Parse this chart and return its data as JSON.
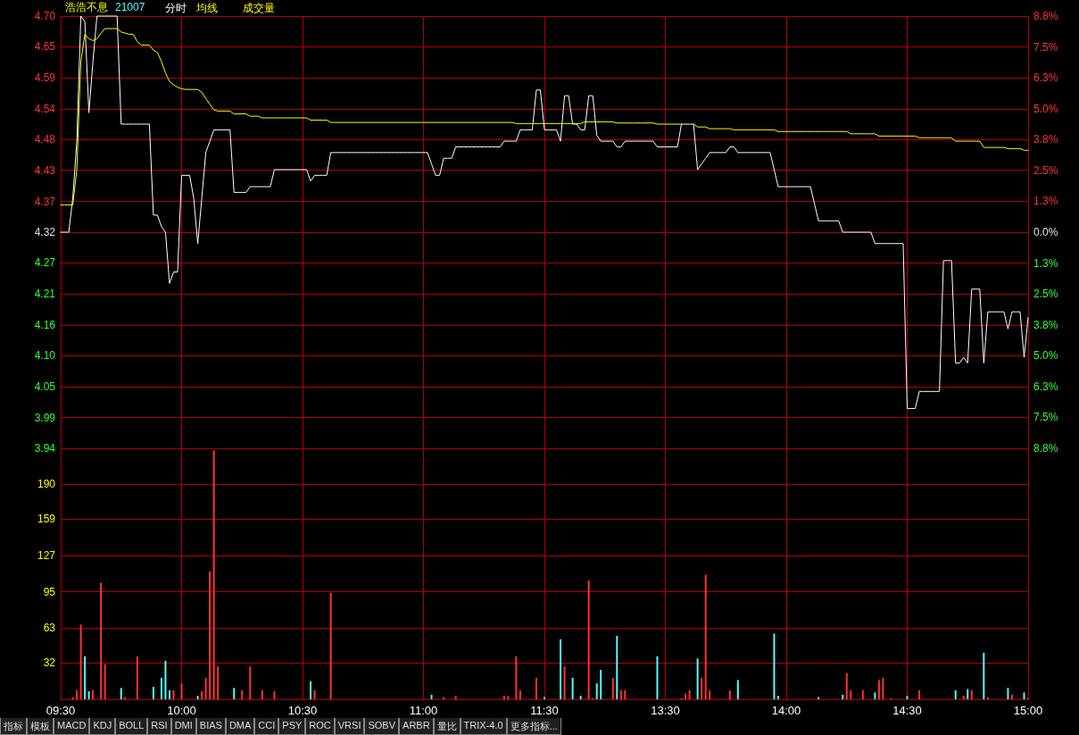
{
  "chart_data": [
    {
      "type": "line",
      "title": "浩浩不息",
      "subtitle": "21007",
      "legend": "top left",
      "grid": true,
      "line_style": "solid",
      "tick_labels": "y",
      "categories": [
        null,
        null,
        null,
        null,
        null,
        null,
        null,
        null,
        null,
        null,
        null,
        null,
        null,
        null,
        null,
        null,
        null,
        null,
        null,
        null,
        null,
        null,
        null,
        null,
        null,
        null,
        null,
        null,
        null,
        null,
        null,
        null,
        null,
        null,
        null,
        null,
        null,
        null,
        null,
        null,
        null,
        null,
        null,
        null,
        null,
        null,
        null,
        null,
        null,
        null,
        null,
        null,
        null,
        null,
        null,
        null,
        null,
        null,
        null,
        null,
        null,
        null,
        null,
        null,
        null,
        null,
        null,
        null,
        null,
        null,
        null,
        null,
        null,
        null,
        null,
        null,
        null,
        null,
        null,
        null,
        null,
        null,
        null,
        null,
        null,
        null,
        null,
        null,
        null,
        null,
        null,
        null,
        null,
        null,
        null,
        null,
        null,
        null,
        null,
        null,
        null,
        null,
        null,
        null,
        null,
        null,
        null,
        null,
        null,
        null,
        null,
        null,
        null,
        null,
        null,
        null,
        null,
        null,
        null,
        null,
        null,
        null,
        null,
        null,
        null,
        null,
        null,
        null,
        null,
        null,
        null,
        null,
        null,
        null,
        null,
        null,
        null,
        null,
        null,
        null,
        null,
        null,
        null,
        null,
        null,
        null,
        null,
        null,
        null,
        null,
        null,
        null,
        null,
        null,
        null,
        null,
        null,
        null,
        null,
        null,
        null,
        null,
        null,
        null,
        null,
        null,
        null,
        null,
        null,
        null,
        null,
        null,
        null,
        null,
        null,
        null,
        null,
        null,
        null,
        null,
        null,
        null,
        null,
        null,
        null,
        null,
        null,
        null,
        null,
        null,
        null,
        null,
        null,
        null,
        null,
        null,
        null,
        null,
        null,
        null,
        null,
        null,
        null,
        null,
        null,
        null,
        null,
        null,
        null,
        null,
        null,
        null,
        null,
        null,
        null,
        null,
        null,
        null,
        null,
        null,
        null,
        null,
        null,
        null,
        null,
        null,
        null,
        null,
        null,
        null,
        null,
        null,
        null,
        null,
        null,
        null,
        null,
        null,
        null,
        null,
        null
      ],
      "ylim": [
        3.94,
        4.7
      ],
      "yticks": [
        {
          "value": 3.94,
          "label": "3.94"
        },
        {
          "value": 3.994,
          "label": "3.99"
        },
        {
          "value": 4.048,
          "label": "4.05"
        },
        {
          "value": 4.103,
          "label": "4.10"
        },
        {
          "value": 4.157,
          "label": "4.16"
        },
        {
          "value": 4.211,
          "label": "4.21"
        },
        {
          "value": 4.266,
          "label": "4.27"
        },
        {
          "value": 4.32,
          "label": "4.32"
        },
        {
          "value": 4.374,
          "label": "4.37"
        },
        {
          "value": 4.429,
          "label": "4.43"
        },
        {
          "value": 4.483,
          "label": "4.48"
        },
        {
          "value": 4.537,
          "label": "4.54"
        },
        {
          "value": 4.591,
          "label": "4.59"
        },
        {
          "value": 4.646,
          "label": "4.65"
        },
        {
          "value": 4.7,
          "label": "4.70"
        }
      ],
      "y2lim": [
        -8.8,
        8.8
      ],
      "y2ticks": [
        {
          "value": -8.8,
          "label": "8.8%"
        },
        {
          "value": -7.54,
          "label": "7.5%"
        },
        {
          "value": -6.29,
          "label": "6.3%"
        },
        {
          "value": -5.03,
          "label": "5.0%"
        },
        {
          "value": -3.77,
          "label": "3.8%"
        },
        {
          "value": -2.51,
          "label": "2.5%"
        },
        {
          "value": -1.26,
          "label": "1.3%"
        },
        {
          "value": 0,
          "label": "0.0%"
        },
        {
          "value": 1.26,
          "label": "1.3%"
        },
        {
          "value": 2.51,
          "label": "2.5%"
        },
        {
          "value": 3.77,
          "label": "3.8%"
        },
        {
          "value": 5.03,
          "label": "5.0%"
        },
        {
          "value": 6.29,
          "label": "6.3%"
        },
        {
          "value": 7.54,
          "label": "7.5%"
        },
        {
          "value": 8.8,
          "label": "8.8%"
        }
      ],
      "series": [
        {
          "name": "分时",
          "color": "#ffffff",
          "values": [
            4.32,
            4.32,
            4.32,
            4.38,
            4.48,
            4.7,
            4.69,
            4.53,
            4.62,
            4.7,
            4.7,
            4.7,
            4.7,
            4.7,
            4.7,
            4.51,
            4.51,
            4.51,
            4.51,
            4.51,
            4.51,
            4.51,
            4.51,
            4.35,
            4.35,
            4.33,
            4.32,
            4.23,
            4.25,
            4.25,
            4.42,
            4.42,
            4.42,
            4.38,
            4.3,
            4.38,
            4.46,
            4.48,
            4.5,
            4.5,
            4.5,
            4.5,
            4.5,
            4.39,
            4.39,
            4.39,
            4.39,
            4.4,
            4.4,
            4.4,
            4.4,
            4.4,
            4.4,
            4.43,
            4.43,
            4.43,
            4.43,
            4.43,
            4.43,
            4.43,
            4.43,
            4.43,
            4.41,
            4.42,
            4.42,
            4.42,
            4.42,
            4.46,
            4.46,
            4.46,
            4.46,
            4.46,
            4.46,
            4.46,
            4.46,
            4.46,
            4.46,
            4.46,
            4.46,
            4.46,
            4.46,
            4.46,
            4.46,
            4.46,
            4.46,
            4.46,
            4.46,
            4.46,
            4.46,
            4.46,
            4.46,
            4.46,
            4.44,
            4.42,
            4.42,
            4.45,
            4.45,
            4.45,
            4.47,
            4.47,
            4.47,
            4.47,
            4.47,
            4.47,
            4.47,
            4.47,
            4.47,
            4.47,
            4.47,
            4.47,
            4.48,
            4.48,
            4.48,
            4.48,
            4.5,
            4.5,
            4.5,
            4.5,
            4.57,
            4.57,
            4.5,
            4.5,
            4.5,
            4.5,
            4.48,
            4.56,
            4.56,
            4.51,
            4.51,
            4.5,
            4.5,
            4.56,
            4.56,
            4.49,
            4.48,
            4.48,
            4.48,
            4.48,
            4.47,
            4.47,
            4.48,
            4.48,
            4.48,
            4.48,
            4.48,
            4.48,
            4.48,
            4.48,
            4.47,
            4.47,
            4.47,
            4.47,
            4.47,
            4.47,
            4.51,
            4.51,
            4.51,
            4.51,
            4.43,
            4.44,
            4.45,
            4.46,
            4.46,
            4.46,
            4.46,
            4.46,
            4.47,
            4.47,
            4.46,
            4.46,
            4.46,
            4.46,
            4.46,
            4.46,
            4.46,
            4.46,
            4.46,
            4.43,
            4.4,
            4.4,
            4.4,
            4.4,
            4.4,
            4.4,
            4.4,
            4.4,
            4.4,
            4.37,
            4.34,
            4.34,
            4.34,
            4.34,
            4.34,
            4.34,
            4.32,
            4.32,
            4.32,
            4.32,
            4.32,
            4.32,
            4.32,
            4.32,
            4.3,
            4.3,
            4.3,
            4.3,
            4.3,
            4.3,
            4.3,
            4.3,
            4.01,
            4.01,
            4.01,
            4.04,
            4.04,
            4.04,
            4.04,
            4.04,
            4.04,
            4.27,
            4.27,
            4.27,
            4.09,
            4.09,
            4.1,
            4.09,
            4.22,
            4.22,
            4.22,
            4.09,
            4.18,
            4.18,
            4.18,
            4.18,
            4.18,
            4.15,
            4.18,
            4.18,
            4.18,
            4.1,
            4.17
          ]
        },
        {
          "name": "均线",
          "color": "#ffff00",
          "values": [
            4.368,
            4.368,
            4.368,
            4.368,
            4.43,
            4.62,
            4.668,
            4.66,
            4.657,
            4.66,
            4.67,
            4.678,
            4.678,
            4.678,
            4.678,
            4.672,
            4.67,
            4.668,
            4.668,
            4.655,
            4.649,
            4.649,
            4.649,
            4.64,
            4.636,
            4.62,
            4.6,
            4.585,
            4.579,
            4.575,
            4.572,
            4.571,
            4.571,
            4.571,
            4.571,
            4.566,
            4.555,
            4.545,
            4.535,
            4.533,
            4.533,
            4.533,
            4.533,
            4.528,
            4.528,
            4.528,
            4.528,
            4.524,
            4.524,
            4.524,
            4.521,
            4.521,
            4.521,
            4.521,
            4.521,
            4.521,
            4.521,
            4.521,
            4.521,
            4.521,
            4.521,
            4.521,
            4.517,
            4.517,
            4.517,
            4.517,
            4.517,
            4.513,
            4.513,
            4.513,
            4.513,
            4.513,
            4.513,
            4.513,
            4.513,
            4.513,
            4.513,
            4.513,
            4.513,
            4.513,
            4.513,
            4.513,
            4.513,
            4.513,
            4.513,
            4.513,
            4.513,
            4.513,
            4.513,
            4.513,
            4.513,
            4.513,
            4.513,
            4.513,
            4.513,
            4.513,
            4.513,
            4.513,
            4.513,
            4.513,
            4.513,
            4.513,
            4.513,
            4.513,
            4.513,
            4.513,
            4.513,
            4.513,
            4.513,
            4.513,
            4.513,
            4.513,
            4.513,
            4.511,
            4.511,
            4.511,
            4.511,
            4.511,
            4.511,
            4.511,
            4.511,
            4.511,
            4.511,
            4.511,
            4.511,
            4.511,
            4.511,
            4.511,
            4.511,
            4.511,
            4.514,
            4.514,
            4.514,
            4.514,
            4.514,
            4.514,
            4.514,
            4.514,
            4.512,
            4.512,
            4.512,
            4.512,
            4.512,
            4.512,
            4.512,
            4.512,
            4.512,
            4.512,
            4.51,
            4.51,
            4.51,
            4.51,
            4.51,
            4.51,
            4.51,
            null,
            null,
            4.51,
            4.505,
            4.505,
            4.505,
            4.502,
            4.502,
            4.502,
            4.502,
            4.502,
            4.502,
            4.5,
            4.5,
            4.5,
            4.5,
            4.5,
            4.5,
            4.5,
            4.5,
            4.5,
            4.5,
            4.5,
            4.497,
            4.497,
            4.497,
            4.497,
            4.497,
            4.497,
            4.497,
            4.497,
            4.497,
            4.497,
            4.497,
            4.497,
            4.497,
            4.497,
            4.497,
            4.497,
            4.497,
            4.497,
            4.493,
            4.493,
            4.493,
            4.493,
            4.493,
            4.493,
            4.493,
            4.489,
            4.489,
            4.489,
            4.489,
            4.489,
            4.489,
            4.489,
            4.489,
            4.489,
            4.489,
            4.486,
            4.486,
            4.486,
            4.486,
            4.486,
            4.486,
            4.486,
            4.486,
            4.486,
            4.48,
            4.48,
            4.48,
            4.48,
            4.48,
            4.48,
            4.48,
            4.469,
            4.469,
            4.469,
            4.469,
            4.469,
            4.469,
            4.467,
            4.467,
            4.467,
            4.467,
            4.464,
            4.464
          ]
        }
      ]
    },
    {
      "type": "bar",
      "legend": "top left",
      "grid": true,
      "categories": [
        "09:30",
        null,
        null,
        null,
        null,
        null,
        null,
        null,
        null,
        null,
        null,
        null,
        null,
        null,
        null,
        null,
        null,
        null,
        null,
        null,
        null,
        null,
        null,
        null,
        null,
        null,
        null,
        null,
        null,
        null,
        "10:00",
        null,
        null,
        null,
        null,
        null,
        null,
        null,
        null,
        null,
        null,
        null,
        null,
        null,
        null,
        null,
        null,
        null,
        null,
        null,
        null,
        null,
        null,
        null,
        null,
        null,
        null,
        null,
        null,
        null,
        "10:30",
        null,
        null,
        null,
        null,
        null,
        null,
        null,
        null,
        null,
        null,
        null,
        null,
        null,
        null,
        null,
        null,
        null,
        null,
        null,
        null,
        null,
        null,
        null,
        null,
        null,
        null,
        null,
        null,
        null,
        "11:00",
        null,
        null,
        null,
        null,
        null,
        null,
        null,
        null,
        null,
        null,
        null,
        null,
        null,
        null,
        null,
        null,
        null,
        null,
        null,
        null,
        null,
        null,
        null,
        null,
        null,
        null,
        null,
        null,
        null,
        "11:30",
        null,
        null,
        null,
        null,
        null,
        null,
        null,
        null,
        null,
        null,
        null,
        null,
        null,
        null,
        null,
        null,
        null,
        null,
        null,
        null,
        null,
        null,
        null,
        null,
        null,
        null,
        null,
        null,
        null,
        "13:30",
        null,
        null,
        null,
        null,
        null,
        null,
        null,
        null,
        null,
        null,
        null,
        null,
        null,
        null,
        null,
        null,
        null,
        null,
        null,
        null,
        null,
        null,
        null,
        null,
        null,
        null,
        null,
        null,
        null,
        "14:00",
        null,
        null,
        null,
        null,
        null,
        null,
        null,
        null,
        null,
        null,
        null,
        null,
        null,
        null,
        null,
        null,
        null,
        null,
        null,
        null,
        null,
        null,
        null,
        null,
        null,
        null,
        null,
        null,
        null,
        "14:30",
        null,
        null,
        null,
        null,
        null,
        null,
        null,
        null,
        null,
        null,
        null,
        null,
        null,
        null,
        null,
        null,
        null,
        null,
        null,
        null,
        null,
        null,
        null,
        null,
        null,
        null,
        null,
        null,
        null,
        "15:00"
      ],
      "ylim": [
        0,
        221.7
      ],
      "yticks": [
        32,
        63,
        95,
        127,
        159,
        190
      ],
      "annotations": [
        "指标",
        "模板",
        "MACD",
        "KDJ",
        "BOLL",
        "RSI",
        "DMI",
        "BIAS",
        "DMA",
        "CCI",
        "PSY",
        "ROC",
        "VRSI",
        "SOBV",
        "ARBR",
        "量比",
        "TRIX-4.0",
        "更多指标..."
      ],
      "series": [
        {
          "name": "成交量",
          "values": [
            null,
            null,
            null,
            2,
            8,
            66,
            38,
            7,
            8,
            null,
            103,
            31,
            null,
            null,
            null,
            10,
            2,
            null,
            null,
            38,
            null,
            null,
            null,
            11,
            null,
            19,
            34,
            8,
            8,
            null,
            14,
            null,
            null,
            null,
            3,
            7,
            19,
            113,
            220,
            29,
            null,
            null,
            null,
            10,
            null,
            8,
            null,
            29,
            null,
            null,
            8,
            null,
            null,
            7,
            null,
            null,
            null,
            null,
            null,
            null,
            null,
            null,
            16,
            8,
            null,
            null,
            null,
            94,
            null,
            null,
            null,
            null,
            null,
            null,
            null,
            null,
            null,
            null,
            null,
            null,
            null,
            null,
            null,
            null,
            null,
            null,
            null,
            null,
            null,
            null,
            null,
            null,
            4,
            null,
            null,
            2,
            null,
            null,
            3,
            null,
            null,
            null,
            null,
            null,
            null,
            null,
            null,
            null,
            null,
            null,
            3,
            3,
            null,
            38,
            8,
            null,
            null,
            null,
            19,
            null,
            2,
            null,
            null,
            null,
            53,
            29,
            null,
            19,
            null,
            3,
            null,
            105,
            1,
            14,
            26,
            null,
            null,
            19,
            56,
            8,
            8,
            null,
            null,
            null,
            null,
            null,
            null,
            null,
            38,
            null,
            null,
            null,
            null,
            null,
            1,
            5,
            8,
            null,
            36,
            19,
            110,
            8,
            null,
            null,
            null,
            null,
            8,
            null,
            17,
            null,
            null,
            null,
            null,
            null,
            null,
            null,
            null,
            58,
            3,
            null,
            null,
            null,
            null,
            null,
            null,
            null,
            null,
            null,
            2,
            null,
            null,
            null,
            null,
            null,
            4,
            23,
            8,
            null,
            null,
            8,
            null,
            null,
            6,
            17,
            19,
            null,
            1,
            null,
            null,
            null,
            3,
            null,
            null,
            8,
            null,
            null,
            null,
            null,
            null,
            null,
            null,
            null,
            8,
            null,
            3,
            9,
            8,
            null,
            null,
            41,
            2,
            null,
            null,
            null,
            null,
            10,
            4,
            null,
            null,
            6,
            1
          ],
          "colors": [
            null,
            null,
            null,
            "#ff3232",
            "#ff3232",
            "#ff3232",
            "#54fcfc",
            "#54fcfc",
            "#ff3232",
            null,
            "#ff3232",
            "#ff3232",
            null,
            null,
            null,
            "#54fcfc",
            "#ff3232",
            null,
            null,
            "#ff3232",
            null,
            null,
            null,
            "#54fcfc",
            null,
            "#54fcfc",
            "#54fcfc",
            "#54fcfc",
            "#ff3232",
            null,
            "#ff3232",
            null,
            null,
            null,
            "#54fcfc",
            "#ff3232",
            "#ff3232",
            "#ff3232",
            "#ff3232",
            "#ff3232",
            null,
            null,
            null,
            "#54fcfc",
            null,
            "#ff3232",
            null,
            "#ff3232",
            null,
            null,
            "#ff3232",
            null,
            null,
            "#ff3232",
            null,
            null,
            null,
            null,
            null,
            null,
            null,
            null,
            "#54fcfc",
            "#ff3232",
            null,
            null,
            null,
            "#ff3232",
            null,
            null,
            null,
            null,
            null,
            null,
            null,
            null,
            null,
            null,
            null,
            null,
            null,
            null,
            null,
            null,
            null,
            null,
            null,
            null,
            null,
            null,
            null,
            null,
            "#54fcfc",
            null,
            null,
            "#ff3232",
            null,
            null,
            "#ff3232",
            null,
            null,
            null,
            null,
            null,
            null,
            null,
            null,
            null,
            null,
            null,
            "#ff3232",
            "#ff3232",
            null,
            "#ff3232",
            "#ff3232",
            null,
            null,
            null,
            "#ff3232",
            null,
            "#54fcfc",
            null,
            null,
            null,
            "#54fcfc",
            "#ff3232",
            null,
            "#54fcfc",
            null,
            "#54fcfc",
            null,
            "#ff3232",
            "#ff3232",
            "#54fcfc",
            "#54fcfc",
            null,
            null,
            "#ff3232",
            "#54fcfc",
            "#ff3232",
            "#ff3232",
            null,
            null,
            null,
            null,
            null,
            null,
            null,
            "#54fcfc",
            null,
            null,
            null,
            null,
            null,
            "#ff3232",
            "#ff3232",
            "#ff3232",
            null,
            "#54fcfc",
            "#ff3232",
            "#ff3232",
            "#ff3232",
            null,
            null,
            null,
            null,
            "#ff3232",
            null,
            "#54fcfc",
            null,
            null,
            null,
            null,
            null,
            null,
            null,
            null,
            "#54fcfc",
            "#54fcfc",
            null,
            null,
            null,
            null,
            null,
            null,
            null,
            null,
            null,
            "#54fcfc",
            null,
            null,
            null,
            null,
            null,
            "#54fcfc",
            "#ff3232",
            "#ff3232",
            null,
            null,
            "#ff3232",
            null,
            null,
            "#54fcfc",
            "#ff3232",
            "#ff3232",
            null,
            "#ff3232",
            null,
            null,
            null,
            "#54fcfc",
            null,
            null,
            "#ff3232",
            null,
            null,
            null,
            null,
            null,
            null,
            null,
            null,
            "#54fcfc",
            null,
            "#ff3232",
            "#54fcfc",
            "#ff3232",
            null,
            null,
            "#54fcfc",
            "#ff3232",
            null,
            null,
            null,
            null,
            "#54fcfc",
            "#ff3232",
            null,
            null,
            "#54fcfc",
            "#ff3232"
          ]
        }
      ]
    }
  ]
}
